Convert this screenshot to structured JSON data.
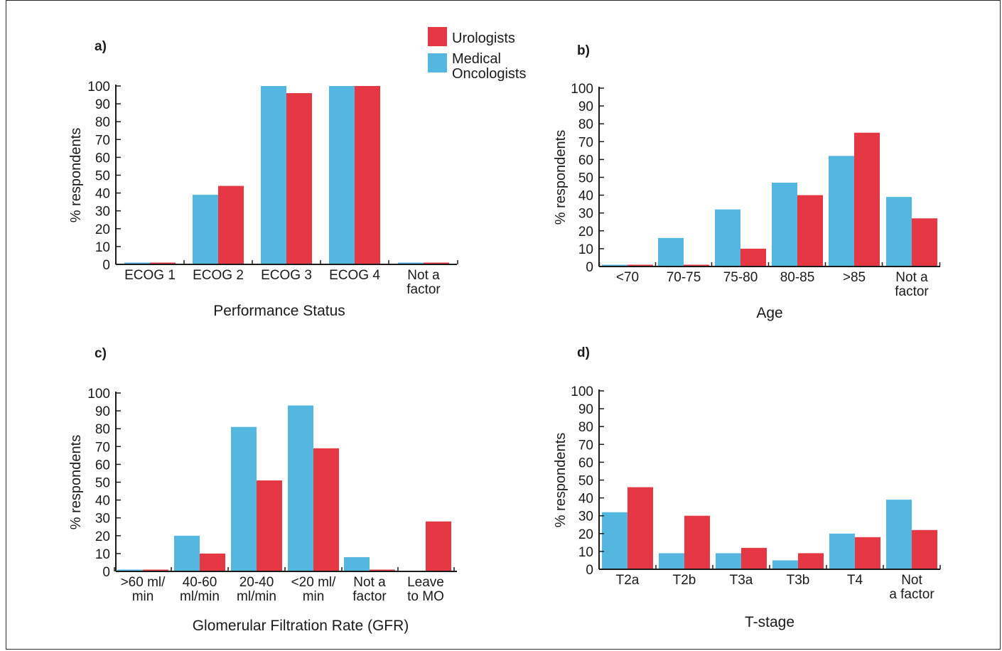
{
  "colors": {
    "medical_oncologists": "#54b7df",
    "urologists": "#e53744",
    "axis": "#1a1a1a"
  },
  "legend": [
    {
      "name": "Urologists",
      "lines": [
        "Urologists"
      ],
      "color": "#e53744"
    },
    {
      "name": "Medical Oncologists",
      "lines": [
        "Medical",
        "Oncologists"
      ],
      "color": "#54b7df"
    }
  ],
  "chart_data": [
    {
      "panel": "a)",
      "type": "bar",
      "xlabel": "Performance Status",
      "ylabel": "% respondents",
      "ylim": [
        0,
        100
      ],
      "yticks": [
        0,
        10,
        20,
        30,
        40,
        50,
        60,
        70,
        80,
        90,
        100
      ],
      "categories": [
        [
          "ECOG 1"
        ],
        [
          "ECOG 2"
        ],
        [
          "ECOG 3"
        ],
        [
          "ECOG 4"
        ],
        [
          "Not a",
          "factor"
        ]
      ],
      "series": [
        {
          "name": "Medical Oncologists",
          "values": [
            1,
            39,
            100,
            100,
            1
          ]
        },
        {
          "name": "Urologists",
          "values": [
            1,
            44,
            96,
            100,
            1
          ]
        }
      ]
    },
    {
      "panel": "b)",
      "type": "bar",
      "xlabel": "Age",
      "ylabel": "% respondents",
      "ylim": [
        0,
        100
      ],
      "yticks": [
        0,
        10,
        20,
        30,
        40,
        50,
        60,
        70,
        80,
        90,
        100
      ],
      "categories": [
        [
          "<70"
        ],
        [
          "70-75"
        ],
        [
          "75-80"
        ],
        [
          "80-85"
        ],
        [
          ">85"
        ],
        [
          "Not a",
          "factor"
        ]
      ],
      "series": [
        {
          "name": "Medical Oncologists",
          "values": [
            1,
            16,
            32,
            47,
            62,
            39
          ]
        },
        {
          "name": "Urologists",
          "values": [
            1,
            1,
            10,
            40,
            75,
            27
          ]
        }
      ]
    },
    {
      "panel": "c)",
      "type": "bar",
      "xlabel": "Glomerular Filtration Rate (GFR)",
      "ylabel": "% respondents",
      "ylim": [
        0,
        100
      ],
      "yticks": [
        0,
        10,
        20,
        30,
        40,
        50,
        60,
        70,
        80,
        90,
        100
      ],
      "categories": [
        [
          ">60 ml/",
          "min"
        ],
        [
          "40-60",
          "ml/min"
        ],
        [
          "20-40",
          "ml/min"
        ],
        [
          "<20 ml/",
          "min"
        ],
        [
          "Not a",
          "factor"
        ],
        [
          "Leave",
          "to MO"
        ]
      ],
      "series": [
        {
          "name": "Medical Oncologists",
          "values": [
            1,
            20,
            81,
            93,
            8,
            0
          ]
        },
        {
          "name": "Urologists",
          "values": [
            1,
            10,
            51,
            69,
            1,
            28
          ]
        }
      ]
    },
    {
      "panel": "d)",
      "type": "bar",
      "xlabel": "T-stage",
      "ylabel": "% respondents",
      "ylim": [
        0,
        100
      ],
      "yticks": [
        0,
        10,
        20,
        30,
        40,
        50,
        60,
        70,
        80,
        90,
        100
      ],
      "categories": [
        [
          "T2a"
        ],
        [
          "T2b"
        ],
        [
          "T3a"
        ],
        [
          "T3b"
        ],
        [
          "T4"
        ],
        [
          "Not",
          "a factor"
        ]
      ],
      "series": [
        {
          "name": "Medical Oncologists",
          "values": [
            32,
            9,
            9,
            5,
            20,
            39
          ]
        },
        {
          "name": "Urologists",
          "values": [
            46,
            30,
            12,
            9,
            18,
            22
          ]
        }
      ]
    }
  ]
}
